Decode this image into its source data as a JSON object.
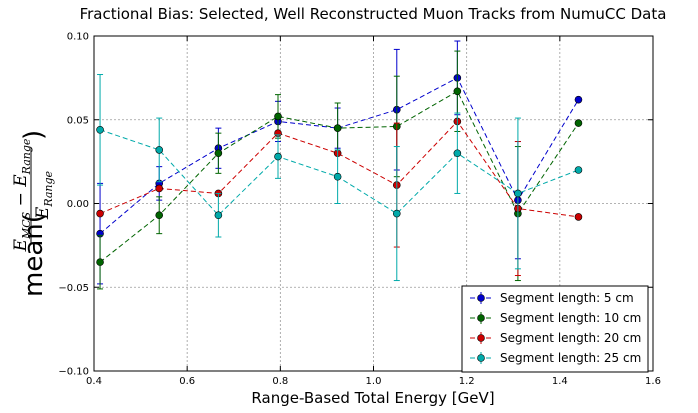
{
  "chart_data": {
    "type": "line",
    "title": "Fractional Bias: Selected, Well Reconstructed Muon Tracks from NumuCC Data",
    "xlabel": "Range-Based Total Energy [GeV]",
    "ylabel": {
      "prefix": "mean(",
      "num_E1": "E",
      "num_sub1": "MCS",
      "minus": " − ",
      "num_E2": "E",
      "num_sub2": "Range",
      "den_E": "E",
      "den_sub": "Range",
      "suffix": ")"
    },
    "xlim": [
      0.4,
      1.6
    ],
    "ylim": [
      -0.1,
      0.1
    ],
    "xticks": [
      0.4,
      0.6,
      0.8,
      1.0,
      1.2,
      1.4,
      1.6
    ],
    "xtick_labels": [
      "0.4",
      "0.6",
      "0.8",
      "1.0",
      "1.2",
      "1.4",
      "1.6"
    ],
    "yticks": [
      -0.1,
      -0.05,
      0.0,
      0.05,
      0.1
    ],
    "ytick_labels": [
      "−0.10",
      "−0.05",
      "0.00",
      "0.05",
      "0.10"
    ],
    "grid": true,
    "legend_position": "lower-right",
    "series": [
      {
        "name": "Segment length: 5 cm",
        "color": "#0000cc",
        "x": [
          0.413,
          0.54,
          0.667,
          0.795,
          0.923,
          1.05,
          1.18,
          1.31,
          1.44
        ],
        "y": [
          -0.018,
          0.012,
          0.033,
          0.049,
          0.045,
          0.056,
          0.075,
          0.002,
          0.062
        ],
        "err": [
          0.03,
          0.01,
          0.012,
          0.012,
          0.012,
          0.036,
          0.022,
          0.035,
          0.0
        ]
      },
      {
        "name": "Segment length: 10 cm",
        "color": "#006400",
        "x": [
          0.413,
          0.54,
          0.667,
          0.795,
          0.923,
          1.05,
          1.18,
          1.31,
          1.44
        ],
        "y": [
          -0.035,
          -0.007,
          0.03,
          0.052,
          0.045,
          0.046,
          0.067,
          -0.006,
          0.048
        ],
        "err": [
          0.016,
          0.011,
          0.012,
          0.013,
          0.015,
          0.03,
          0.024,
          0.04,
          0.0
        ]
      },
      {
        "name": "Segment length: 20 cm",
        "color": "#cc0000",
        "x": [
          0.413,
          0.54,
          0.667,
          0.795,
          0.923,
          1.05,
          1.18,
          1.31,
          1.44
        ],
        "y": [
          -0.006,
          0.009,
          0.006,
          0.042,
          0.03,
          0.011,
          0.049,
          -0.003,
          -0.008
        ],
        "err": [
          0.0,
          0.0,
          0.0,
          0.0,
          0.0,
          0.037,
          0.0,
          0.04,
          0.0
        ]
      },
      {
        "name": "Segment length: 25 cm",
        "color": "#00aaaa",
        "x": [
          0.413,
          0.54,
          0.667,
          0.795,
          0.923,
          1.05,
          1.18,
          1.31,
          1.44
        ],
        "y": [
          0.044,
          0.032,
          -0.007,
          0.028,
          0.016,
          -0.006,
          0.03,
          0.006,
          0.02
        ],
        "err": [
          0.033,
          0.019,
          0.013,
          0.013,
          0.016,
          0.04,
          0.024,
          0.045,
          0.0
        ]
      }
    ]
  }
}
